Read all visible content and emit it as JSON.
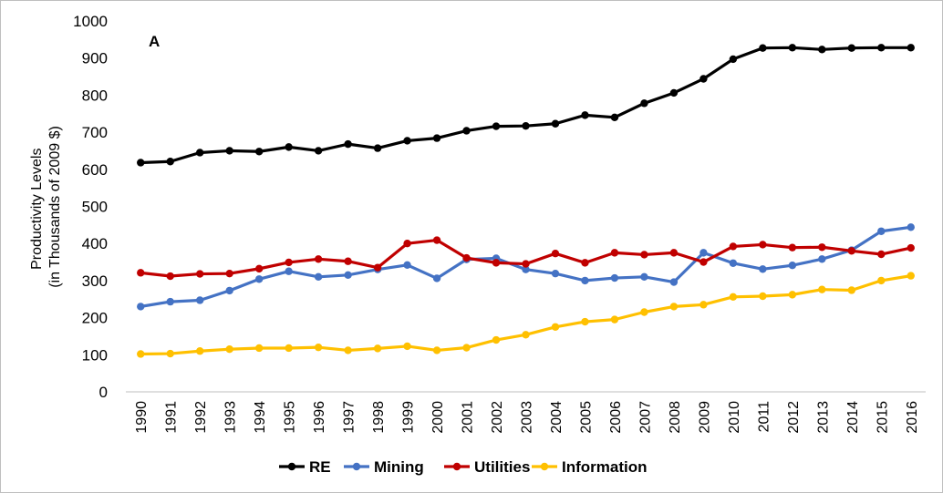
{
  "chart_data": {
    "type": "line",
    "panel_label": "A",
    "title": "",
    "xlabel": "",
    "ylabel_lines": [
      "Productivity Levels",
      "(in Thousands of 2009 $)"
    ],
    "ylim": [
      0,
      1000
    ],
    "yticks": [
      0,
      100,
      200,
      300,
      400,
      500,
      600,
      700,
      800,
      900,
      1000
    ],
    "categories": [
      "1990",
      "1991",
      "1992",
      "1993",
      "1994",
      "1995",
      "1996",
      "1997",
      "1998",
      "1999",
      "2000",
      "2001",
      "2002",
      "2003",
      "2004",
      "2005",
      "2006",
      "2007",
      "2008",
      "2009",
      "2010",
      "2011",
      "2012",
      "2013",
      "2014",
      "2015",
      "2016"
    ],
    "grid": false,
    "legend_position": "bottom",
    "series": [
      {
        "name": "RE",
        "color": "#000000",
        "values": [
          618,
          621,
          645,
          650,
          648,
          660,
          650,
          668,
          657,
          677,
          684,
          704,
          716,
          717,
          723,
          746,
          740,
          778,
          806,
          844,
          897,
          927,
          928,
          923,
          927,
          928,
          928
        ]
      },
      {
        "name": "Mining",
        "color": "#4472C4",
        "values": [
          230,
          243,
          247,
          273,
          304,
          325,
          310,
          315,
          330,
          342,
          306,
          357,
          360,
          330,
          319,
          300,
          307,
          310,
          296,
          375,
          347,
          331,
          341,
          358,
          382,
          433,
          444
        ]
      },
      {
        "name": "Utilities",
        "color": "#C00000",
        "values": [
          321,
          312,
          318,
          319,
          332,
          349,
          358,
          352,
          335,
          400,
          409,
          361,
          348,
          345,
          373,
          348,
          375,
          370,
          375,
          350,
          392,
          397,
          389,
          390,
          380,
          371,
          388
        ]
      },
      {
        "name": "Information",
        "color": "#FFC000",
        "values": [
          102,
          103,
          110,
          115,
          118,
          118,
          120,
          112,
          117,
          123,
          112,
          119,
          140,
          154,
          175,
          189,
          195,
          215,
          230,
          235,
          256,
          258,
          262,
          276,
          274,
          300,
          313
        ]
      }
    ]
  }
}
